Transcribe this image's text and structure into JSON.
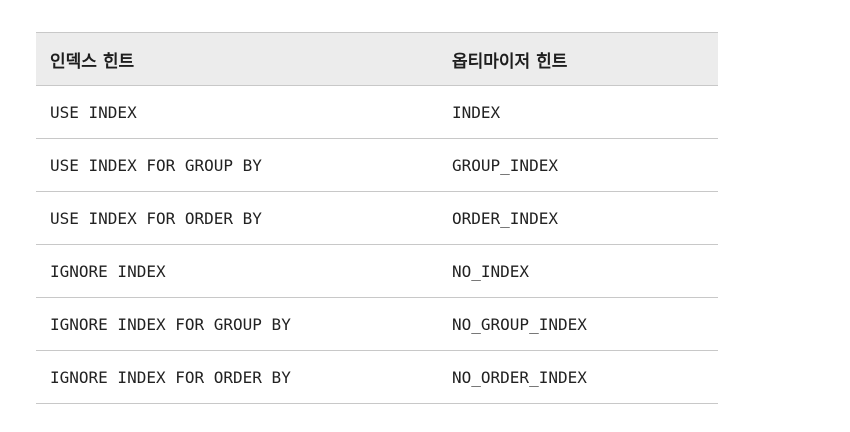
{
  "table": {
    "headers": [
      "인덱스 힌트",
      "옵티마이저 힌트"
    ],
    "rows": [
      [
        "USE INDEX",
        "INDEX"
      ],
      [
        "USE INDEX FOR GROUP BY",
        "GROUP_INDEX"
      ],
      [
        "USE INDEX FOR ORDER BY",
        "ORDER_INDEX"
      ],
      [
        "IGNORE INDEX",
        "NO_INDEX"
      ],
      [
        "IGNORE INDEX FOR GROUP BY",
        "NO_GROUP_INDEX"
      ],
      [
        "IGNORE INDEX FOR ORDER BY",
        "NO_ORDER_INDEX"
      ]
    ]
  }
}
